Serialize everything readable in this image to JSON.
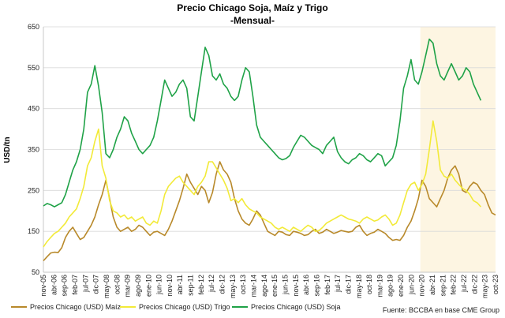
{
  "chart_data": {
    "type": "line",
    "title": "Precio Chicago Soja, Maíz y Trigo",
    "subtitle": "-Mensual-",
    "ylabel": "USD/tn",
    "xlabel": "",
    "ylim": [
      50,
      650
    ],
    "yticks": [
      50,
      150,
      250,
      350,
      450,
      550,
      650
    ],
    "grid": "horizontal",
    "x_tick_labels": [
      "nov-05",
      "abr-06",
      "sep-06",
      "feb-07",
      "jul-07",
      "dic-07",
      "may-08",
      "oct-08",
      "mar-09",
      "ago-09",
      "ene-10",
      "jun-10",
      "nov-10",
      "abr-11",
      "sep-11",
      "feb-12",
      "jul-12",
      "dic-12",
      "may-13",
      "oct-13",
      "mar-14",
      "ago-14",
      "ene-15",
      "jun-15",
      "nov-15",
      "abr-16",
      "sep-16",
      "feb-17",
      "jul-17",
      "dic-17",
      "may-18",
      "oct-18",
      "mar-19",
      "ago-19",
      "ene-20",
      "jun-20",
      "nov-20",
      "abr-21",
      "sep-21",
      "feb-22",
      "jul-22",
      "dic-22",
      "may-23",
      "oct-23"
    ],
    "highlight": {
      "from": "nov-20",
      "to": "oct-23",
      "color": "#fdf5e2"
    },
    "series": [
      {
        "name": "Precios Chicago (USD) Maíz",
        "color": "#b8892a",
        "values": [
          78,
          88,
          97,
          99,
          98,
          110,
          135,
          150,
          160,
          145,
          130,
          135,
          150,
          165,
          185,
          215,
          240,
          275,
          230,
          185,
          160,
          150,
          155,
          160,
          150,
          155,
          165,
          160,
          150,
          140,
          148,
          150,
          145,
          140,
          155,
          175,
          200,
          225,
          255,
          290,
          270,
          255,
          240,
          260,
          250,
          220,
          245,
          290,
          320,
          300,
          290,
          270,
          230,
          200,
          180,
          170,
          165,
          180,
          200,
          190,
          170,
          150,
          145,
          140,
          150,
          148,
          142,
          140,
          150,
          148,
          145,
          140,
          142,
          150,
          155,
          145,
          148,
          155,
          150,
          145,
          148,
          152,
          150,
          148,
          150,
          160,
          165,
          150,
          140,
          145,
          148,
          155,
          150,
          145,
          135,
          128,
          130,
          128,
          140,
          160,
          175,
          200,
          230,
          275,
          260,
          230,
          220,
          210,
          230,
          250,
          280,
          300,
          310,
          290,
          250,
          245,
          260,
          270,
          265,
          250,
          240,
          215,
          195,
          190
        ]
      },
      {
        "name": "Precios Chicago (USD) Trigo",
        "color": "#f2ea38",
        "values": [
          112,
          125,
          135,
          145,
          150,
          160,
          170,
          185,
          195,
          205,
          230,
          260,
          310,
          330,
          370,
          400,
          310,
          280,
          225,
          200,
          195,
          185,
          190,
          180,
          185,
          175,
          180,
          185,
          170,
          165,
          175,
          170,
          200,
          240,
          260,
          270,
          280,
          285,
          270,
          260,
          250,
          240,
          260,
          270,
          285,
          320,
          320,
          305,
          290,
          275,
          255,
          225,
          230,
          220,
          230,
          215,
          205,
          200,
          195,
          185,
          180,
          175,
          170,
          160,
          155,
          160,
          155,
          150,
          160,
          155,
          150,
          158,
          165,
          160,
          150,
          152,
          160,
          170,
          175,
          180,
          185,
          190,
          185,
          180,
          178,
          175,
          170,
          180,
          185,
          180,
          175,
          178,
          185,
          190,
          180,
          165,
          170,
          190,
          220,
          250,
          265,
          270,
          250,
          265,
          290,
          350,
          420,
          370,
          300,
          285,
          280,
          290,
          275,
          265,
          255,
          250,
          240,
          225,
          220,
          210
        ]
      },
      {
        "name": "Precios Chicago (USD) Soja",
        "color": "#1fa247",
        "values": [
          212,
          218,
          215,
          210,
          215,
          220,
          240,
          270,
          300,
          320,
          350,
          400,
          490,
          510,
          555,
          505,
          440,
          340,
          330,
          350,
          380,
          400,
          430,
          420,
          390,
          370,
          350,
          340,
          350,
          360,
          380,
          420,
          470,
          520,
          500,
          480,
          490,
          510,
          520,
          500,
          430,
          420,
          480,
          540,
          600,
          580,
          530,
          520,
          535,
          510,
          500,
          480,
          470,
          480,
          520,
          550,
          540,
          480,
          410,
          380,
          370,
          360,
          350,
          340,
          330,
          325,
          328,
          335,
          355,
          370,
          385,
          380,
          370,
          360,
          355,
          350,
          340,
          360,
          370,
          380,
          345,
          330,
          320,
          315,
          325,
          330,
          340,
          335,
          325,
          320,
          330,
          340,
          335,
          310,
          320,
          330,
          360,
          420,
          500,
          530,
          570,
          520,
          510,
          540,
          580,
          620,
          610,
          560,
          530,
          520,
          540,
          560,
          540,
          520,
          530,
          550,
          540,
          510,
          490,
          470
        ]
      }
    ]
  },
  "source": "Fuente: BCCBA en base CME Group"
}
